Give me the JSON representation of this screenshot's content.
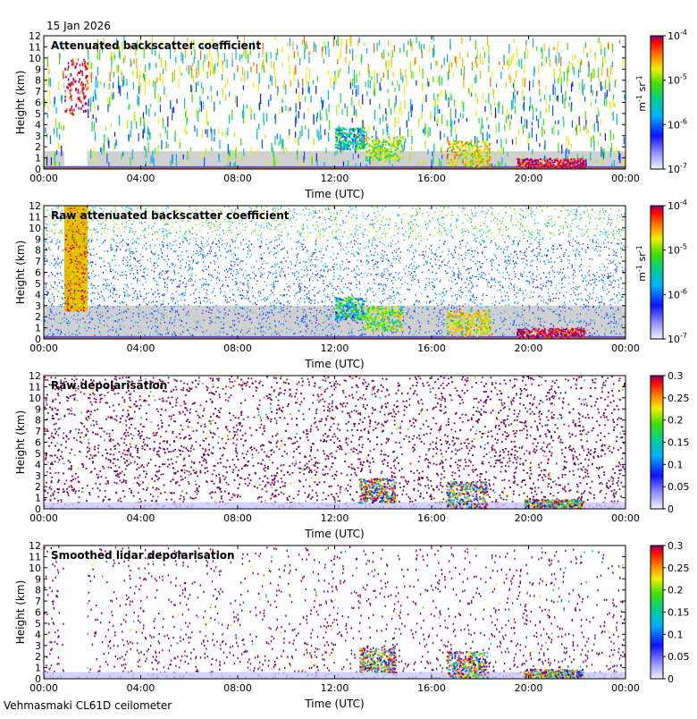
{
  "date_label": "15 Jan 2026",
  "footer_label": "Vehmasmaki CL61D ceilometer",
  "colors": {
    "axis": "#000000",
    "missing": "#d0d0d0",
    "background": "#ffffff"
  },
  "chart_data": [
    {
      "type": "heatmap",
      "title": "Attenuated backscatter coefficient",
      "xlabel": "Time (UTC)",
      "ylabel": "Height (km)",
      "xticks": [
        "00:00",
        "04:00",
        "08:00",
        "12:00",
        "16:00",
        "20:00",
        "00:00"
      ],
      "yticks": [
        "0",
        "1",
        "2",
        "3",
        "4",
        "5",
        "6",
        "7",
        "8",
        "9",
        "10",
        "11",
        "12"
      ],
      "xlim": [
        0,
        24
      ],
      "ylim": [
        0,
        12
      ],
      "colorbar": {
        "scale": "log",
        "range": [
          1e-07,
          0.0001
        ],
        "tick_labels": [
          "10-7",
          "10-6",
          "10-5",
          "10-4"
        ],
        "tick_bases": [
          "10",
          "10",
          "10",
          "10"
        ],
        "tick_exponents": [
          "-7",
          "-6",
          "-5",
          "-4"
        ],
        "unit_parts": [
          "m",
          "-1",
          " sr",
          "-1"
        ]
      }
    },
    {
      "type": "heatmap",
      "title": "Raw attenuated backscatter coefficient",
      "xlabel": "Time (UTC)",
      "ylabel": "Height (km)",
      "xticks": [
        "00:00",
        "04:00",
        "08:00",
        "12:00",
        "16:00",
        "20:00",
        "00:00"
      ],
      "yticks": [
        "0",
        "1",
        "2",
        "3",
        "4",
        "5",
        "6",
        "7",
        "8",
        "9",
        "10",
        "11",
        "12"
      ],
      "xlim": [
        0,
        24
      ],
      "ylim": [
        0,
        12
      ],
      "colorbar": {
        "scale": "log",
        "range": [
          1e-07,
          0.0001
        ],
        "tick_labels": [
          "10-7",
          "10-6",
          "10-5",
          "10-4"
        ],
        "tick_bases": [
          "10",
          "10",
          "10",
          "10"
        ],
        "tick_exponents": [
          "-7",
          "-6",
          "-5",
          "-4"
        ],
        "unit_parts": [
          "m",
          "-1",
          " sr",
          "-1"
        ]
      }
    },
    {
      "type": "heatmap",
      "title": "Raw depolarisation",
      "xlabel": "Time (UTC)",
      "ylabel": "Height (km)",
      "xticks": [
        "00:00",
        "04:00",
        "08:00",
        "12:00",
        "16:00",
        "20:00",
        "00:00"
      ],
      "yticks": [
        "0",
        "1",
        "2",
        "3",
        "4",
        "5",
        "6",
        "7",
        "8",
        "9",
        "10",
        "11",
        "12"
      ],
      "xlim": [
        0,
        24
      ],
      "ylim": [
        0,
        12
      ],
      "colorbar": {
        "scale": "linear",
        "range": [
          0,
          0.3
        ],
        "tick_labels": [
          "0",
          "0.05",
          "0.1",
          "0.15",
          "0.2",
          "0.25",
          "0.3"
        ]
      }
    },
    {
      "type": "heatmap",
      "title": "Smoothed lidar depolarisation",
      "xlabel": "Time (UTC)",
      "ylabel": "Height (km)",
      "xticks": [
        "00:00",
        "04:00",
        "08:00",
        "12:00",
        "16:00",
        "20:00",
        "00:00"
      ],
      "yticks": [
        "0",
        "1",
        "2",
        "3",
        "4",
        "5",
        "6",
        "7",
        "8",
        "9",
        "10",
        "11",
        "12"
      ],
      "xlim": [
        0,
        24
      ],
      "ylim": [
        0,
        12
      ],
      "colorbar": {
        "scale": "linear",
        "range": [
          0,
          0.3
        ],
        "tick_labels": [
          "0",
          "0.05",
          "0.1",
          "0.15",
          "0.2",
          "0.25",
          "0.3"
        ]
      }
    }
  ]
}
